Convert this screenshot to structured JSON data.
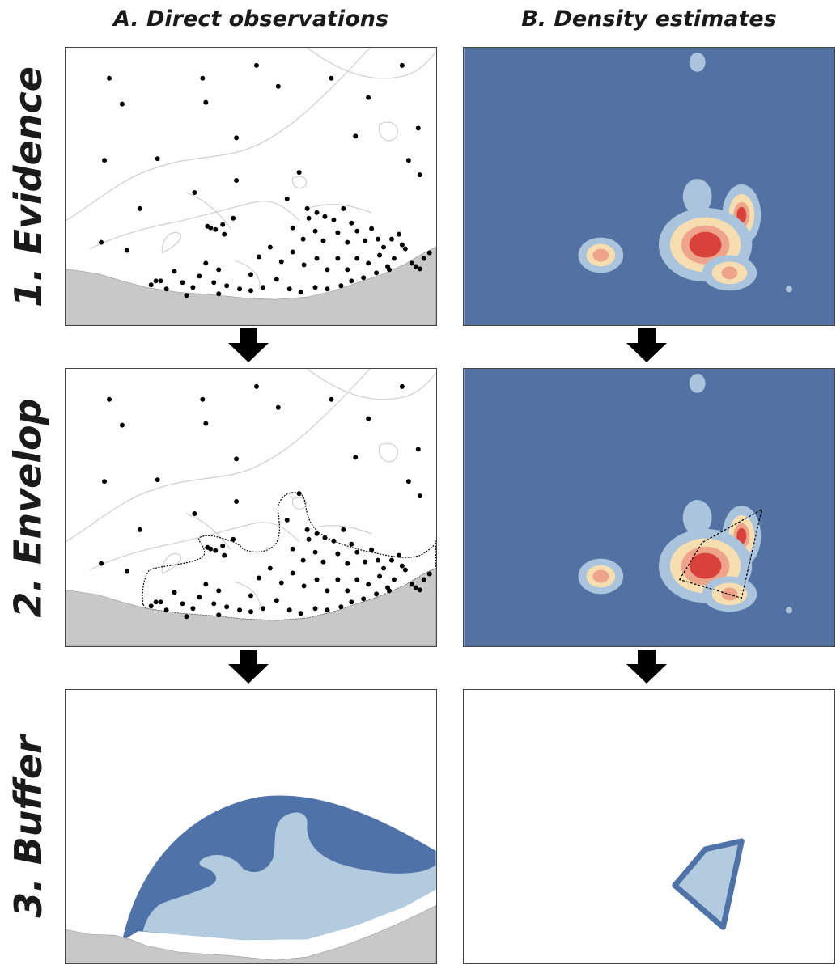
{
  "figure": {
    "column_titles": [
      "A. Direct observations",
      "B. Density estimates"
    ],
    "row_titles": [
      "1. Evidence",
      "2. Envelop",
      "3. Buffer"
    ]
  },
  "colors": {
    "land": "#c8c8c8",
    "contour": "#cfcfcf",
    "density_background": "#5272a3",
    "density_low": "#a9c4dc",
    "density_mid": "#f6deb0",
    "density_high_mid": "#eea48a",
    "density_high": "#d9423a",
    "buffer_dark": "#4f72a8",
    "buffer_light": "#b3cbde",
    "point": "#000000"
  },
  "icons": [
    "down-arrow-icon"
  ]
}
